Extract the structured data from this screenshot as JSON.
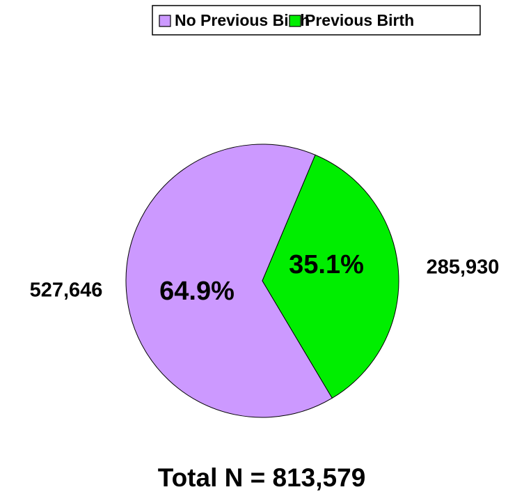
{
  "chart_data": {
    "type": "pie",
    "categories": [
      "No Previous Birth",
      "Previous Birth"
    ],
    "values": [
      64.9,
      35.1
    ],
    "value_labels": [
      "64.9%",
      "35.1%"
    ],
    "counts": [
      527646,
      285930
    ],
    "count_labels": [
      "527,646",
      "285,930"
    ],
    "colors": [
      "#cc99ff",
      "#00ee00"
    ],
    "legend": "top",
    "annotation": "Total N = 813,579"
  }
}
